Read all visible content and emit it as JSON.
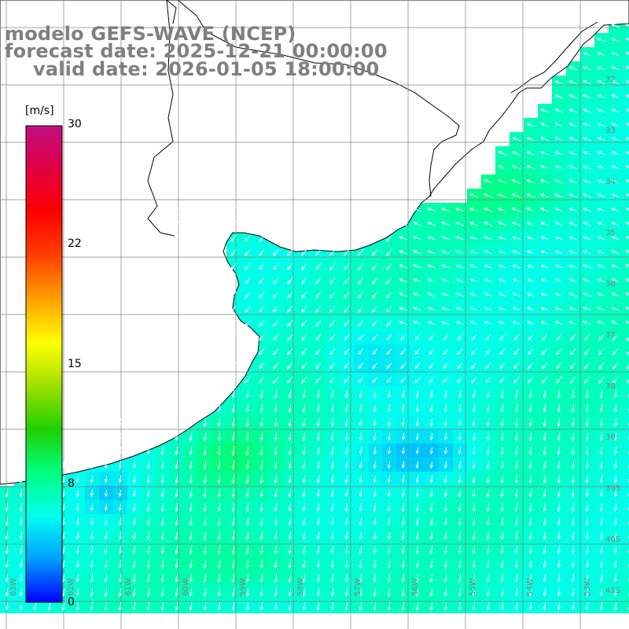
{
  "title": {
    "model": "modelo GEFS-WAVE (NCEP)",
    "forecast": "forecast date: 2025-12-21 00:00:00",
    "valid": "valid date: 2026-01-05 18:00:00"
  },
  "colorbar": {
    "unit": "[m/s]",
    "min": 0,
    "max": 30,
    "ticks": [
      "30",
      "22",
      "15",
      "8",
      "0"
    ],
    "tick_values": [
      30,
      22,
      15,
      8,
      0
    ],
    "colors": [
      "#0000ff",
      "#00a0ff",
      "#00ffee",
      "#00ff80",
      "#20d000",
      "#a0e000",
      "#ffff00",
      "#ffa000",
      "#ff4000",
      "#ff0000",
      "#e00040",
      "#c01080"
    ]
  },
  "map": {
    "lat_labels_right": [
      "32",
      "33",
      "34",
      "35",
      "36",
      "37",
      "38",
      "39",
      "39S",
      "40S",
      "41S"
    ],
    "lon_labels_bottom": [
      "63W",
      "62W",
      "61W",
      "60W",
      "59W",
      "58W",
      "57W",
      "56W",
      "55W",
      "54W",
      "53W"
    ],
    "field": "wind speed and direction",
    "land_color": "#ffffff",
    "arrow_color": "#ffffff",
    "grid_color": "#808080"
  }
}
